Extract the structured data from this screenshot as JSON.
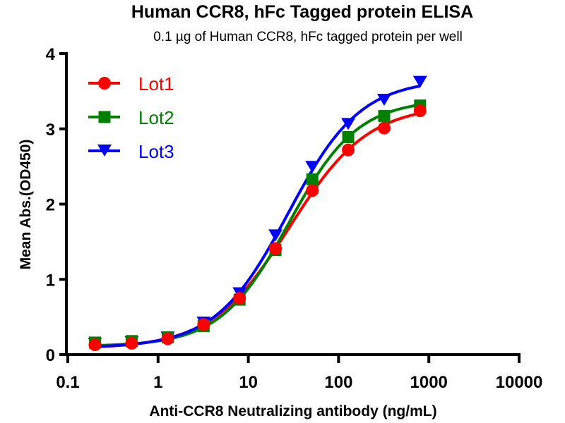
{
  "chart_data": {
    "type": "line",
    "title": "Human CCR8, hFc Tagged protein ELISA",
    "subtitle": "0.1 µg of Human CCR8, hFc tagged protein per well",
    "xlabel": "Anti-CCR8 Neutralizing antibody (ng/mL)",
    "ylabel": "Mean Abs.(OD450)",
    "xscale": "log",
    "xlim": [
      0.1,
      10000
    ],
    "ylim": [
      0,
      4
    ],
    "xticks": [
      0.1,
      1,
      10,
      100,
      1000,
      10000
    ],
    "xtick_labels": [
      "0.1",
      "1",
      "10",
      "100",
      "1000",
      "10000"
    ],
    "yticks": [
      0,
      1,
      2,
      3,
      4
    ],
    "ytick_labels": [
      "0",
      "1",
      "2",
      "3",
      "4"
    ],
    "grid": false,
    "legend_position": "top-left",
    "x": [
      0.2,
      0.51,
      1.28,
      3.2,
      8,
      20,
      51.2,
      128,
      320,
      800
    ],
    "series": [
      {
        "name": "Lot1",
        "color": "#ff0000",
        "marker": "circle",
        "values": [
          0.13,
          0.15,
          0.21,
          0.4,
          0.75,
          1.41,
          2.18,
          2.72,
          3.01,
          3.24
        ]
      },
      {
        "name": "Lot2",
        "color": "#008000",
        "marker": "square",
        "values": [
          0.16,
          0.18,
          0.23,
          0.38,
          0.73,
          1.39,
          2.33,
          2.89,
          3.17,
          3.31
        ]
      },
      {
        "name": "Lot3",
        "color": "#0000ff",
        "marker": "triangle-down",
        "values": [
          0.14,
          0.16,
          0.22,
          0.42,
          0.81,
          1.58,
          2.49,
          3.06,
          3.38,
          3.62
        ]
      }
    ]
  }
}
